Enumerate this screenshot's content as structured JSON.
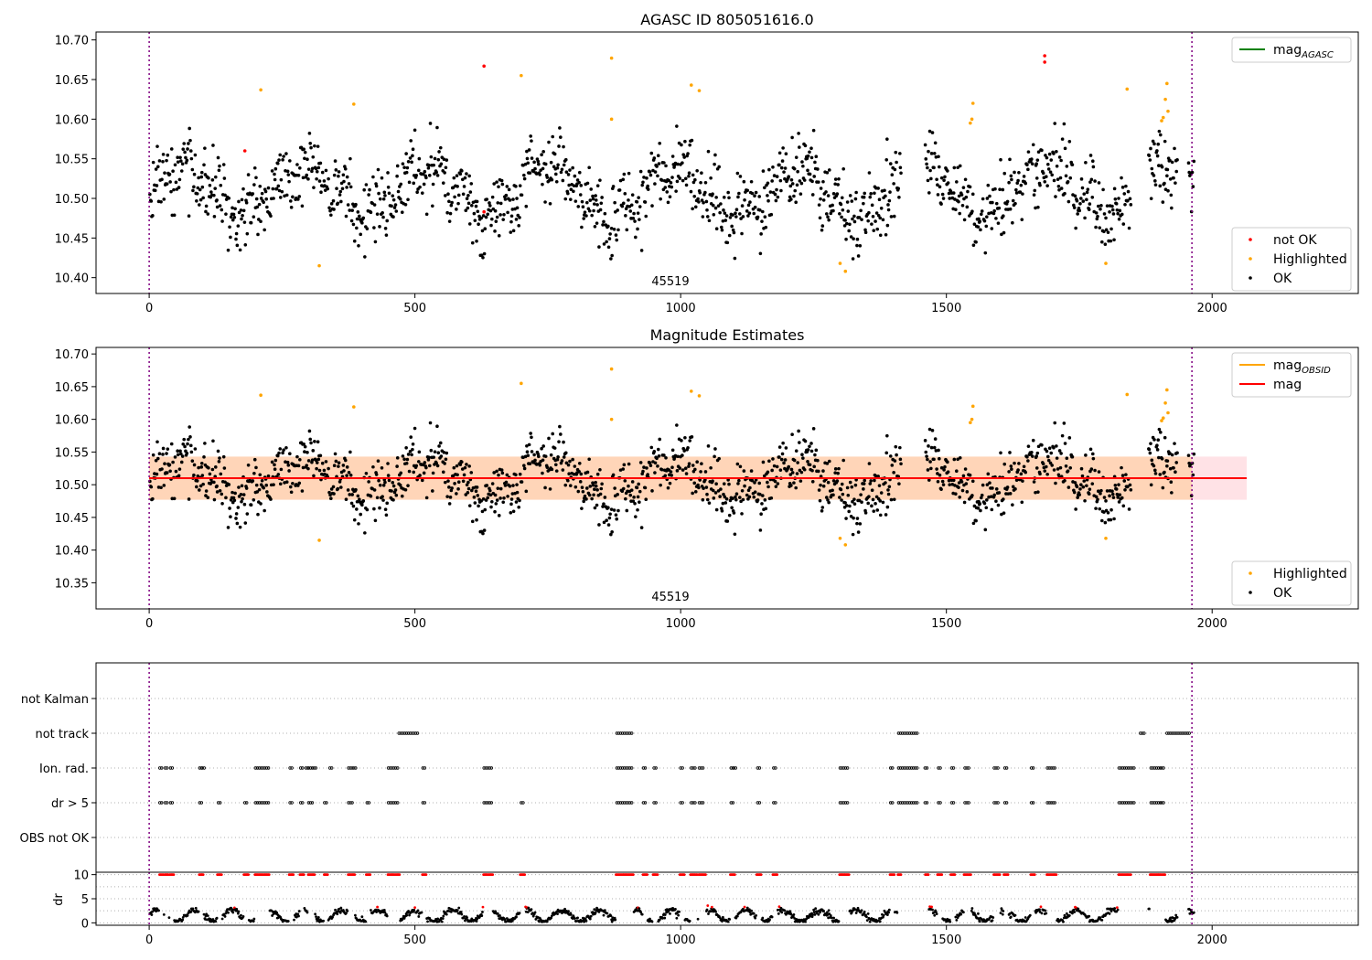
{
  "chart_data": [
    {
      "type": "scatter",
      "title": "AGASC ID 805051616.0",
      "ylim": [
        10.38,
        10.71
      ],
      "xlim": [
        -100,
        2275
      ],
      "x_ticks": [
        0,
        500,
        1000,
        1500,
        2000
      ],
      "y_ticks": [
        10.4,
        10.45,
        10.5,
        10.55,
        10.6,
        10.65,
        10.7
      ],
      "annotation": {
        "text": "45519",
        "x": 980
      },
      "vlines": [
        0,
        1962
      ],
      "legend_upper": [
        {
          "label": "mag",
          "sub": "AGASC",
          "color": "#008000",
          "kind": "line"
        }
      ],
      "legend_lower": [
        {
          "label": "not OK",
          "color": "#ff0000",
          "kind": "dot"
        },
        {
          "label": "Highlighted",
          "color": "#ffa500",
          "kind": "dot"
        },
        {
          "label": "OK",
          "color": "#000000",
          "kind": "dot"
        }
      ],
      "series": [
        {
          "name": "OK",
          "color": "#000000",
          "mean": 10.51,
          "sigma": 0.033,
          "n": 1450
        },
        {
          "name": "Highlighted",
          "color": "#ffa500",
          "points": [
            [
              210,
              10.637
            ],
            [
              320,
              10.415
            ],
            [
              385,
              10.619
            ],
            [
              700,
              10.655
            ],
            [
              870,
              10.677
            ],
            [
              870,
              10.6
            ],
            [
              1020,
              10.643
            ],
            [
              1035,
              10.636
            ],
            [
              1300,
              10.418
            ],
            [
              1310,
              10.408
            ],
            [
              1550,
              10.62
            ],
            [
              1548,
              10.6
            ],
            [
              1545,
              10.595
            ],
            [
              1800,
              10.418
            ],
            [
              1840,
              10.638
            ],
            [
              1905,
              10.598
            ],
            [
              1908,
              10.602
            ],
            [
              1912,
              10.625
            ],
            [
              1915,
              10.645
            ],
            [
              1917,
              10.61
            ]
          ]
        },
        {
          "name": "not OK",
          "color": "#ff0000",
          "points": [
            [
              180,
              10.56
            ],
            [
              630,
              10.667
            ],
            [
              630,
              10.483
            ],
            [
              1685,
              10.68
            ],
            [
              1685,
              10.672
            ]
          ]
        }
      ]
    },
    {
      "type": "scatter",
      "title": "Magnitude Estimates",
      "ylim": [
        10.31,
        10.71
      ],
      "xlim": [
        -100,
        2275
      ],
      "x_ticks": [
        0,
        500,
        1000,
        1500,
        2000
      ],
      "y_ticks": [
        10.35,
        10.4,
        10.45,
        10.5,
        10.55,
        10.6,
        10.65,
        10.7
      ],
      "annotation": {
        "text": "45519",
        "x": 980
      },
      "vlines": [
        0,
        1962
      ],
      "mag_line": {
        "value": 10.51,
        "x": [
          0,
          2065
        ],
        "color": "#ff0000"
      },
      "bands": [
        {
          "x": [
            0,
            2065
          ],
          "y": [
            10.477,
            10.543
          ],
          "color": "#ffb6c1",
          "opacity": 0.4
        },
        {
          "x": [
            0,
            1962
          ],
          "y": [
            10.477,
            10.543
          ],
          "color": "#ffa500",
          "opacity": 0.2
        }
      ],
      "legend_upper": [
        {
          "label": "mag",
          "sub": "OBSID",
          "color": "#ffa500",
          "kind": "line"
        },
        {
          "label": "mag",
          "sub": "",
          "color": "#ff0000",
          "kind": "line"
        }
      ],
      "legend_lower": [
        {
          "label": "Highlighted",
          "color": "#ffa500",
          "kind": "dot"
        },
        {
          "label": "OK",
          "color": "#000000",
          "kind": "dot"
        }
      ]
    },
    {
      "type": "scatter",
      "title": "",
      "categories": [
        "OBS not OK",
        "dr > 5",
        "Ion. rad.",
        "not track",
        "not Kalman"
      ],
      "xlim": [
        -100,
        2275
      ],
      "vlines": [
        0,
        1962
      ],
      "flags": {
        "not track": [
          [
            470,
            505
          ],
          [
            880,
            910
          ],
          [
            1410,
            1445
          ],
          [
            1865,
            1875
          ],
          [
            1915,
            1960
          ]
        ],
        "Ion. rad.": [
          [
            20,
            25
          ],
          [
            30,
            35
          ],
          [
            40,
            45
          ],
          [
            95,
            100
          ],
          [
            100,
            105
          ],
          [
            200,
            225
          ],
          [
            265,
            270
          ],
          [
            285,
            290
          ],
          [
            295,
            300
          ],
          [
            300,
            310
          ],
          [
            310,
            315
          ],
          [
            340,
            345
          ],
          [
            375,
            385
          ],
          [
            385,
            390
          ],
          [
            450,
            470
          ],
          [
            515,
            520
          ],
          [
            630,
            645
          ],
          [
            880,
            910
          ],
          [
            930,
            935
          ],
          [
            950,
            955
          ],
          [
            1000,
            1005
          ],
          [
            1020,
            1030
          ],
          [
            1035,
            1045
          ],
          [
            1095,
            1100
          ],
          [
            1100,
            1105
          ],
          [
            1145,
            1150
          ],
          [
            1175,
            1180
          ],
          [
            1300,
            1315
          ],
          [
            1395,
            1400
          ],
          [
            1410,
            1445
          ],
          [
            1460,
            1465
          ],
          [
            1485,
            1490
          ],
          [
            1510,
            1515
          ],
          [
            1535,
            1545
          ],
          [
            1590,
            1600
          ],
          [
            1610,
            1615
          ],
          [
            1660,
            1665
          ],
          [
            1690,
            1705
          ],
          [
            1825,
            1855
          ],
          [
            1885,
            1905
          ],
          [
            1905,
            1910
          ]
        ],
        "dr > 5": [
          [
            20,
            25
          ],
          [
            30,
            35
          ],
          [
            40,
            45
          ],
          [
            95,
            100
          ],
          [
            130,
            135
          ],
          [
            180,
            185
          ],
          [
            200,
            225
          ],
          [
            265,
            270
          ],
          [
            285,
            290
          ],
          [
            300,
            310
          ],
          [
            330,
            335
          ],
          [
            375,
            385
          ],
          [
            410,
            415
          ],
          [
            450,
            470
          ],
          [
            515,
            520
          ],
          [
            630,
            645
          ],
          [
            700,
            705
          ],
          [
            880,
            910
          ],
          [
            930,
            935
          ],
          [
            950,
            955
          ],
          [
            1000,
            1005
          ],
          [
            1020,
            1030
          ],
          [
            1035,
            1045
          ],
          [
            1095,
            1100
          ],
          [
            1145,
            1150
          ],
          [
            1175,
            1180
          ],
          [
            1300,
            1315
          ],
          [
            1395,
            1400
          ],
          [
            1410,
            1445
          ],
          [
            1460,
            1465
          ],
          [
            1485,
            1490
          ],
          [
            1510,
            1515
          ],
          [
            1535,
            1545
          ],
          [
            1590,
            1600
          ],
          [
            1610,
            1615
          ],
          [
            1660,
            1665
          ],
          [
            1690,
            1705
          ],
          [
            1825,
            1855
          ],
          [
            1885,
            1905
          ],
          [
            1905,
            1910
          ]
        ]
      }
    },
    {
      "type": "scatter",
      "ylabel": "dr",
      "ylim": [
        -0.5,
        10.5
      ],
      "xlim": [
        -100,
        2275
      ],
      "x_ticks": [
        0,
        500,
        1000,
        1500,
        2000
      ],
      "y_ticks": [
        0,
        5,
        10
      ],
      "vlines": [
        0,
        1962
      ]
    }
  ]
}
